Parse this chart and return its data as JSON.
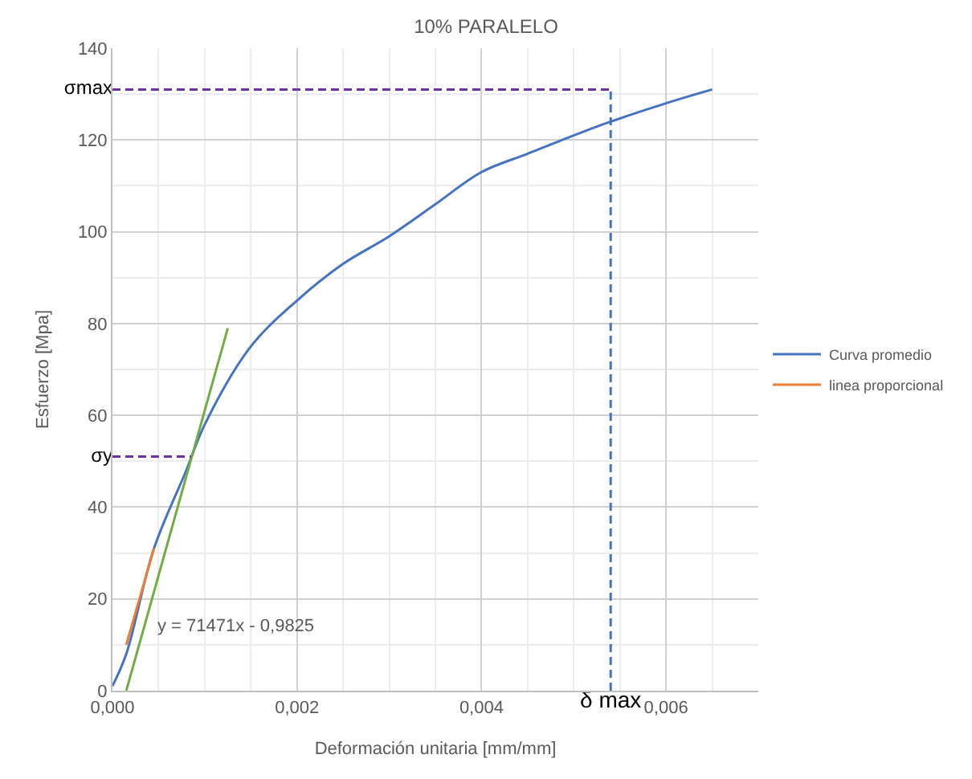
{
  "chart_data": {
    "type": "line",
    "title": "10% PARALELO",
    "xlabel": "Deformación unitaria [mm/mm]",
    "ylabel": "Esfuerzo [Mpa]",
    "xlim": [
      0,
      0.007
    ],
    "ylim": [
      0,
      140
    ],
    "xticks": [
      {
        "value": 0,
        "label": "0,000"
      },
      {
        "value": 0.002,
        "label": "0,002"
      },
      {
        "value": 0.004,
        "label": "0,004"
      },
      {
        "value": 0.006,
        "label": "0,006"
      }
    ],
    "yticks": [
      0,
      20,
      40,
      60,
      80,
      100,
      120,
      140
    ],
    "grid": true,
    "legend": "right",
    "line_style": "solid",
    "marker": "none",
    "series": [
      {
        "name": "Curva promedio",
        "color": "#4472c4",
        "x": [
          0,
          0.00015,
          0.00045,
          0.0008,
          0.001,
          0.0015,
          0.002,
          0.0025,
          0.003,
          0.0035,
          0.004,
          0.0045,
          0.005,
          0.0054,
          0.006,
          0.0065
        ],
        "values": [
          1,
          8,
          31,
          48,
          58,
          75,
          85,
          93,
          99,
          106,
          113,
          117,
          121,
          124,
          128,
          131
        ]
      },
      {
        "name": "linea proporcional",
        "color": "#ed7d31",
        "x": [
          0.00015,
          0.00045
        ],
        "values": [
          10,
          31
        ]
      },
      {
        "color": "#70ad47",
        "x": [
          0.00015,
          0.00125
        ],
        "values": [
          0,
          79
        ]
      },
      {
        "name": "σmax",
        "color": "#7030a0",
        "line_style": "dashed",
        "x": [
          0,
          0.0054
        ],
        "values": [
          131,
          131
        ]
      },
      {
        "name": "σy",
        "color": "#7030a0",
        "line_style": "dashed",
        "x": [
          0,
          0.00085
        ],
        "values": [
          51,
          51
        ]
      },
      {
        "name": "δ max",
        "color": "#4472c4",
        "line_style": "dashed",
        "x": [
          0.0054,
          0.0054
        ],
        "values": [
          0,
          131
        ]
      }
    ],
    "annotations": [
      {
        "text": "y = 71471x - 0,9825",
        "x": 0.00045,
        "y": 14
      }
    ]
  }
}
